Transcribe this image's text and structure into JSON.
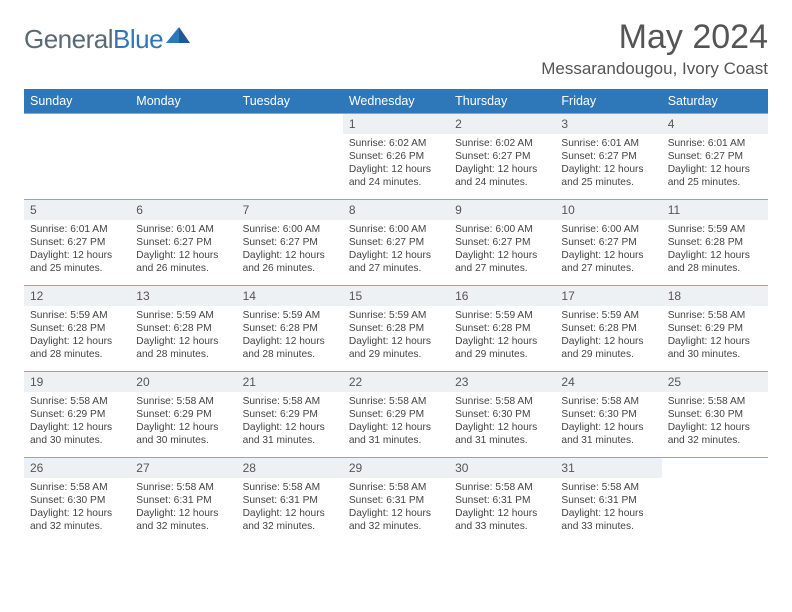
{
  "logo": {
    "word1": "General",
    "word2": "Blue"
  },
  "title": "May 2024",
  "subtitle": "Messarandougou, Ivory Coast",
  "colors": {
    "header_bg": "#2e77b8",
    "header_text": "#ffffff",
    "daynum_bg": "#eef1f3",
    "border": "#8aa8c2",
    "title_text": "#555555"
  },
  "day_names": [
    "Sunday",
    "Monday",
    "Tuesday",
    "Wednesday",
    "Thursday",
    "Friday",
    "Saturday"
  ],
  "weeks": [
    [
      {
        "empty": true
      },
      {
        "empty": true
      },
      {
        "empty": true
      },
      {
        "num": "1",
        "sunrise": "6:02 AM",
        "sunset": "6:26 PM",
        "daylight": "12 hours and 24 minutes."
      },
      {
        "num": "2",
        "sunrise": "6:02 AM",
        "sunset": "6:27 PM",
        "daylight": "12 hours and 24 minutes."
      },
      {
        "num": "3",
        "sunrise": "6:01 AM",
        "sunset": "6:27 PM",
        "daylight": "12 hours and 25 minutes."
      },
      {
        "num": "4",
        "sunrise": "6:01 AM",
        "sunset": "6:27 PM",
        "daylight": "12 hours and 25 minutes."
      }
    ],
    [
      {
        "num": "5",
        "sunrise": "6:01 AM",
        "sunset": "6:27 PM",
        "daylight": "12 hours and 25 minutes."
      },
      {
        "num": "6",
        "sunrise": "6:01 AM",
        "sunset": "6:27 PM",
        "daylight": "12 hours and 26 minutes."
      },
      {
        "num": "7",
        "sunrise": "6:00 AM",
        "sunset": "6:27 PM",
        "daylight": "12 hours and 26 minutes."
      },
      {
        "num": "8",
        "sunrise": "6:00 AM",
        "sunset": "6:27 PM",
        "daylight": "12 hours and 27 minutes."
      },
      {
        "num": "9",
        "sunrise": "6:00 AM",
        "sunset": "6:27 PM",
        "daylight": "12 hours and 27 minutes."
      },
      {
        "num": "10",
        "sunrise": "6:00 AM",
        "sunset": "6:27 PM",
        "daylight": "12 hours and 27 minutes."
      },
      {
        "num": "11",
        "sunrise": "5:59 AM",
        "sunset": "6:28 PM",
        "daylight": "12 hours and 28 minutes."
      }
    ],
    [
      {
        "num": "12",
        "sunrise": "5:59 AM",
        "sunset": "6:28 PM",
        "daylight": "12 hours and 28 minutes."
      },
      {
        "num": "13",
        "sunrise": "5:59 AM",
        "sunset": "6:28 PM",
        "daylight": "12 hours and 28 minutes."
      },
      {
        "num": "14",
        "sunrise": "5:59 AM",
        "sunset": "6:28 PM",
        "daylight": "12 hours and 28 minutes."
      },
      {
        "num": "15",
        "sunrise": "5:59 AM",
        "sunset": "6:28 PM",
        "daylight": "12 hours and 29 minutes."
      },
      {
        "num": "16",
        "sunrise": "5:59 AM",
        "sunset": "6:28 PM",
        "daylight": "12 hours and 29 minutes."
      },
      {
        "num": "17",
        "sunrise": "5:59 AM",
        "sunset": "6:28 PM",
        "daylight": "12 hours and 29 minutes."
      },
      {
        "num": "18",
        "sunrise": "5:58 AM",
        "sunset": "6:29 PM",
        "daylight": "12 hours and 30 minutes."
      }
    ],
    [
      {
        "num": "19",
        "sunrise": "5:58 AM",
        "sunset": "6:29 PM",
        "daylight": "12 hours and 30 minutes."
      },
      {
        "num": "20",
        "sunrise": "5:58 AM",
        "sunset": "6:29 PM",
        "daylight": "12 hours and 30 minutes."
      },
      {
        "num": "21",
        "sunrise": "5:58 AM",
        "sunset": "6:29 PM",
        "daylight": "12 hours and 31 minutes."
      },
      {
        "num": "22",
        "sunrise": "5:58 AM",
        "sunset": "6:29 PM",
        "daylight": "12 hours and 31 minutes."
      },
      {
        "num": "23",
        "sunrise": "5:58 AM",
        "sunset": "6:30 PM",
        "daylight": "12 hours and 31 minutes."
      },
      {
        "num": "24",
        "sunrise": "5:58 AM",
        "sunset": "6:30 PM",
        "daylight": "12 hours and 31 minutes."
      },
      {
        "num": "25",
        "sunrise": "5:58 AM",
        "sunset": "6:30 PM",
        "daylight": "12 hours and 32 minutes."
      }
    ],
    [
      {
        "num": "26",
        "sunrise": "5:58 AM",
        "sunset": "6:30 PM",
        "daylight": "12 hours and 32 minutes."
      },
      {
        "num": "27",
        "sunrise": "5:58 AM",
        "sunset": "6:31 PM",
        "daylight": "12 hours and 32 minutes."
      },
      {
        "num": "28",
        "sunrise": "5:58 AM",
        "sunset": "6:31 PM",
        "daylight": "12 hours and 32 minutes."
      },
      {
        "num": "29",
        "sunrise": "5:58 AM",
        "sunset": "6:31 PM",
        "daylight": "12 hours and 32 minutes."
      },
      {
        "num": "30",
        "sunrise": "5:58 AM",
        "sunset": "6:31 PM",
        "daylight": "12 hours and 33 minutes."
      },
      {
        "num": "31",
        "sunrise": "5:58 AM",
        "sunset": "6:31 PM",
        "daylight": "12 hours and 33 minutes."
      },
      {
        "empty": true
      }
    ]
  ],
  "labels": {
    "sunrise": "Sunrise:",
    "sunset": "Sunset:",
    "daylight": "Daylight:"
  }
}
